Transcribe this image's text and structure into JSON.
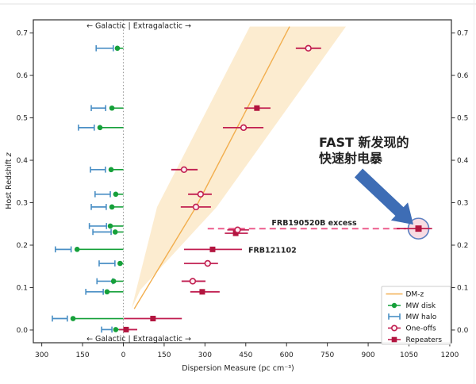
{
  "colors": {
    "green": "#16a03a",
    "blue": "#4a8fc5",
    "crimson": "#c11e50",
    "crimson_dark": "#b2153f",
    "open_fill": "#fdf0f3",
    "orange": "#f2ae4e",
    "band": "#fce9c8",
    "pink_dash": "#ef6f99",
    "pink_label": "#f24a78",
    "crimson_label": "#e4194e",
    "red_text": "#ef2c1c",
    "arrow_blue": "#3e6db5",
    "highlight_fill": "#f8dce3",
    "highlight_stroke": "#5d80c2",
    "axis": "#2f2f2f",
    "zero_line": "#999999",
    "legend_border": "#cccccc",
    "frame_edge": "#e2e2e2"
  },
  "axes": {
    "x": {
      "label": "Dispersion Measure (pc cm⁻³)",
      "ticks": [
        -300,
        -150,
        0,
        150,
        300,
        450,
        600,
        750,
        900,
        1050,
        1200
      ],
      "tick_labels": [
        "300",
        "150",
        "0",
        "150",
        "300",
        "450",
        "600",
        "750",
        "900",
        "1050",
        "1200"
      ]
    },
    "y": {
      "label_main": "Host Redshift ",
      "label_math": "z",
      "ticks": [
        0.0,
        0.1,
        0.2,
        0.3,
        0.4,
        0.5,
        0.6,
        0.7
      ],
      "tick_labels": [
        "0.0",
        "0.1",
        "0.2",
        "0.3",
        "0.4",
        "0.5",
        "0.6",
        "0.7"
      ]
    }
  },
  "annotations": {
    "top_galactic": "←  Galactic | Extragalactic  →",
    "bottom_galactic": "←  Galactic | Extragalactic  →",
    "frb190520b": "FRB190520B excess",
    "frb121102": "FRB121102",
    "fast_line1": "FAST 新发现的",
    "fast_line2": "快速射电暴"
  },
  "legend": {
    "items": [
      {
        "label": "DM-z",
        "type": "line"
      },
      {
        "label": "MW disk",
        "type": "disk"
      },
      {
        "label": "MW halo",
        "type": "halo"
      },
      {
        "label": "One-offs",
        "type": "oneoff"
      },
      {
        "label": "Repeaters",
        "type": "repeater"
      }
    ]
  },
  "chart_data": {
    "type": "scatter",
    "title": "",
    "xlabel": "Dispersion Measure (pc cm⁻³)",
    "ylabel": "Host Redshift z",
    "xlim": [
      -331,
      1206
    ],
    "ylim": [
      -0.03,
      0.731
    ],
    "grid": false,
    "legend_position": "lower right",
    "dm_z_line": [
      [
        40,
        0.05
      ],
      [
        267,
        0.29
      ],
      [
        611,
        0.715
      ]
    ],
    "dm_z_band": [
      [
        30,
        0.05
      ],
      [
        124,
        0.29
      ],
      [
        465,
        0.715
      ],
      [
        818,
        0.715
      ],
      [
        343,
        0.29
      ],
      [
        63,
        0.095
      ]
    ],
    "mw_disk": [
      {
        "z": 0.664,
        "dm": -22
      },
      {
        "z": 0.523,
        "dm": -42
      },
      {
        "z": 0.477,
        "dm": -86
      },
      {
        "z": 0.378,
        "dm": -45
      },
      {
        "z": 0.32,
        "dm": -28
      },
      {
        "z": 0.29,
        "dm": -42
      },
      {
        "z": 0.245,
        "dm": -48
      },
      {
        "z": 0.231,
        "dm": -30
      },
      {
        "z": 0.19,
        "dm": -170
      },
      {
        "z": 0.157,
        "dm": -12
      },
      {
        "z": 0.115,
        "dm": -36
      },
      {
        "z": 0.09,
        "dm": -60
      },
      {
        "z": 0.027,
        "dm": -185
      },
      {
        "z": 0.001,
        "dm": -28
      }
    ],
    "mw_halo": [
      {
        "z": 0.664,
        "lo": -100,
        "hi": -37
      },
      {
        "z": 0.523,
        "lo": -118,
        "hi": -65
      },
      {
        "z": 0.477,
        "lo": -165,
        "hi": -107
      },
      {
        "z": 0.378,
        "lo": -121,
        "hi": -66
      },
      {
        "z": 0.32,
        "lo": -104,
        "hi": -48
      },
      {
        "z": 0.29,
        "lo": -118,
        "hi": -63
      },
      {
        "z": 0.245,
        "lo": -125,
        "hi": -62
      },
      {
        "z": 0.231,
        "lo": -112,
        "hi": -45
      },
      {
        "z": 0.19,
        "lo": -250,
        "hi": -192
      },
      {
        "z": 0.157,
        "lo": -89,
        "hi": -31
      },
      {
        "z": 0.115,
        "lo": -97,
        "hi": -39
      },
      {
        "z": 0.09,
        "lo": -138,
        "hi": -74
      },
      {
        "z": 0.027,
        "lo": -261,
        "hi": -206
      },
      {
        "z": 0.001,
        "lo": -80,
        "hi": -42
      }
    ],
    "one_offs": [
      {
        "z": 0.664,
        "dm": 680,
        "lo": 634,
        "hi": 727
      },
      {
        "z": 0.477,
        "dm": 442,
        "lo": 366,
        "hi": 515
      },
      {
        "z": 0.378,
        "dm": 223,
        "lo": 176,
        "hi": 273
      },
      {
        "z": 0.32,
        "dm": 284,
        "lo": 238,
        "hi": 325
      },
      {
        "z": 0.29,
        "dm": 267,
        "lo": 211,
        "hi": 322
      },
      {
        "z": 0.236,
        "dm": 420,
        "lo": 382,
        "hi": 462
      },
      {
        "z": 0.157,
        "dm": 310,
        "lo": 223,
        "hi": 348
      },
      {
        "z": 0.115,
        "dm": 255,
        "lo": 214,
        "hi": 302
      }
    ],
    "repeaters": [
      {
        "z": 0.523,
        "dm": 491,
        "lo": 445,
        "hi": 541
      },
      {
        "z": 0.228,
        "dm": 413,
        "lo": 373,
        "hi": 458
      },
      {
        "z": 0.19,
        "dm": 328,
        "lo": 223,
        "hi": 436
      },
      {
        "z": 0.09,
        "dm": 290,
        "lo": 246,
        "hi": 354
      },
      {
        "z": 0.027,
        "dm": 109,
        "lo": 2,
        "hi": 215
      },
      {
        "z": 0.001,
        "dm": 10,
        "lo": -16,
        "hi": 51
      }
    ],
    "excess_dash": {
      "z": 0.239,
      "from_dm": 310,
      "to_dm": 1040
    },
    "highlight": {
      "z": 0.239,
      "dm": 1085,
      "lo": 1005,
      "hi": 1135,
      "radius_px": 13
    }
  }
}
